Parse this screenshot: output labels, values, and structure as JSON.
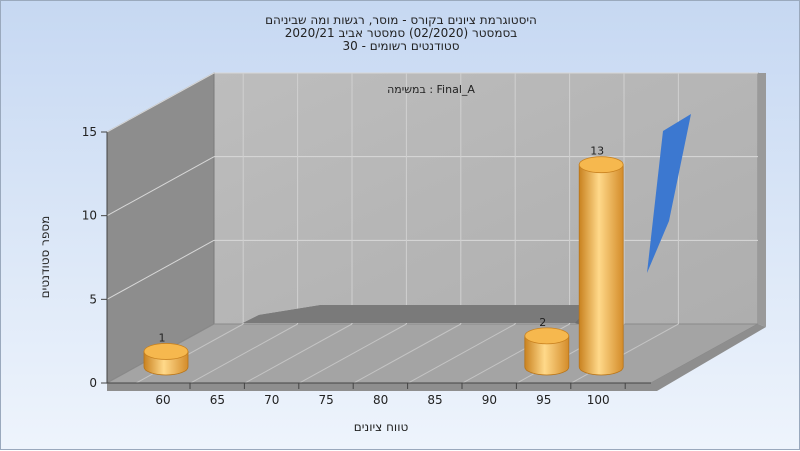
{
  "chart_data": {
    "type": "bar",
    "title_lines": [
      "היסטוגרמת ציונים בקורס - מוסר, רגשות ומה שביניהם",
      "בסמסטר (02/2020) סמסטר אביב 2020/21",
      "סטודנטים רשומים - 30"
    ],
    "subtitle": "במשימה : Final_A",
    "xlabel": "טווח ציונים",
    "ylabel": "מספר סטודנטים",
    "x_ticks": [
      "60",
      "65",
      "70",
      "75",
      "80",
      "85",
      "90",
      "95",
      "100"
    ],
    "y_ticks": [
      "0",
      "5",
      "10",
      "15"
    ],
    "ylim": [
      0,
      15
    ],
    "bars": [
      {
        "x": 60,
        "value": 1
      },
      {
        "x": 95,
        "value": 2
      },
      {
        "x": 100,
        "value": 13
      }
    ],
    "colors": {
      "bar": "#f0ac48",
      "line": "#6a6a6a",
      "blue": "#3c78d0",
      "plot_back": "#b8b8b8",
      "plot_left": "#8c8c8c",
      "plot_floor": "#a2a2a2"
    }
  }
}
